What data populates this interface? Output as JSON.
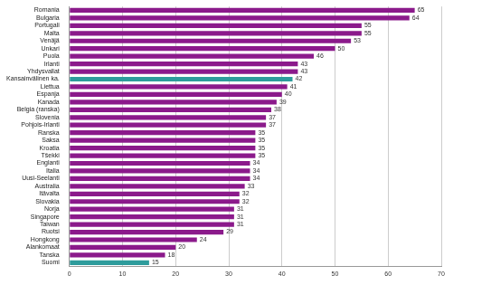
{
  "chart_data": {
    "type": "bar",
    "orientation": "horizontal",
    "categories": [
      "Romania",
      "Bulgaria",
      "Portugali",
      "Malta",
      "Venäjä",
      "Unkari",
      "Puola",
      "Irlanti",
      "Yhdysvallat",
      "Kansainvälinen ka.",
      "Liettua",
      "Espanja",
      "Kanada",
      "Belgia (ranska)",
      "Slovenia",
      "Pohjois-Irlanti",
      "Ranska",
      "Saksa",
      "Kroatia",
      "Tšekki",
      "Englanti",
      "Italia",
      "Uusi-Seelanti",
      "Australia",
      "Itävalta",
      "Slovakia",
      "Norja",
      "Singapore",
      "Taiwan",
      "Ruotsi",
      "Hongkong",
      "Alankomaat",
      "Tanska",
      "Suomi"
    ],
    "values": [
      65,
      64,
      55,
      55,
      53,
      50,
      46,
      43,
      43,
      42,
      41,
      40,
      39,
      38,
      37,
      37,
      35,
      35,
      35,
      35,
      34,
      34,
      34,
      33,
      32,
      32,
      31,
      31,
      31,
      29,
      24,
      20,
      18,
      15
    ],
    "colors": [
      "#8b1a8b",
      "#8b1a8b",
      "#8b1a8b",
      "#8b1a8b",
      "#8b1a8b",
      "#8b1a8b",
      "#8b1a8b",
      "#8b1a8b",
      "#8b1a8b",
      "#2e9c9c",
      "#8b1a8b",
      "#8b1a8b",
      "#8b1a8b",
      "#8b1a8b",
      "#8b1a8b",
      "#8b1a8b",
      "#8b1a8b",
      "#8b1a8b",
      "#8b1a8b",
      "#8b1a8b",
      "#8b1a8b",
      "#8b1a8b",
      "#8b1a8b",
      "#8b1a8b",
      "#8b1a8b",
      "#8b1a8b",
      "#8b1a8b",
      "#8b1a8b",
      "#8b1a8b",
      "#8b1a8b",
      "#8b1a8b",
      "#8b1a8b",
      "#8b1a8b",
      "#2e9c9c"
    ],
    "xlim": [
      0,
      70
    ],
    "xticks": [
      0,
      10,
      20,
      30,
      40,
      50,
      60,
      70
    ],
    "grid": true,
    "data_labels": true
  }
}
